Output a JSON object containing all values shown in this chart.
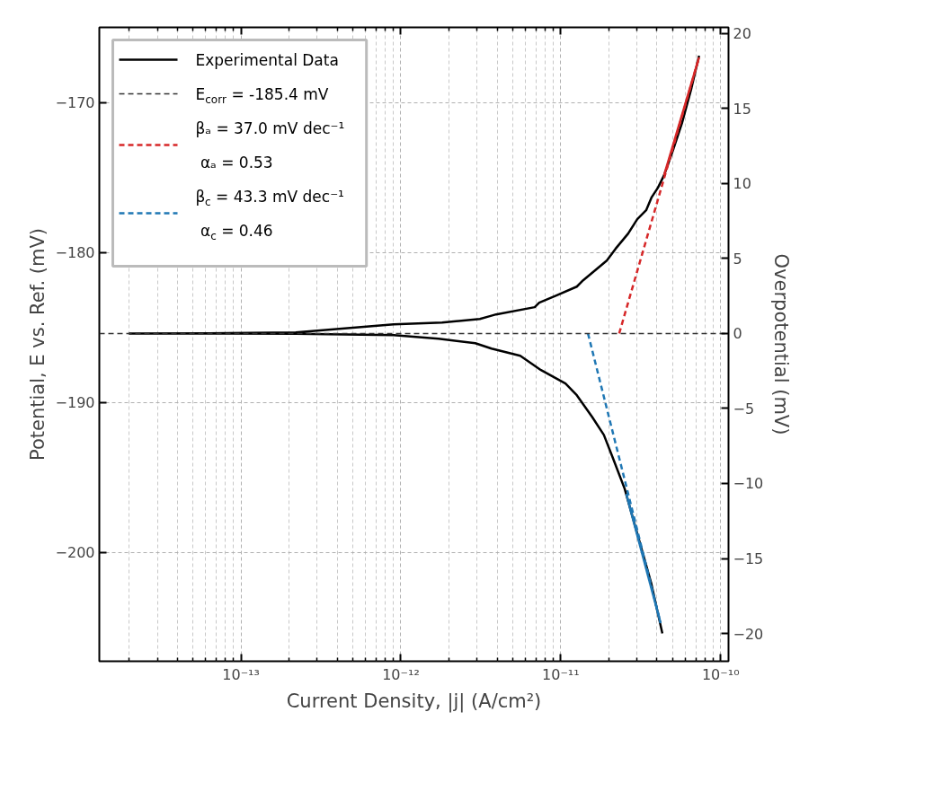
{
  "chart_data": {
    "type": "line",
    "xlabel": "Current Density, |j| (A/cm²)",
    "ylabel": "Potential, E vs. Ref. (mV)",
    "y2label": "Overpotential (mV)",
    "log": "x",
    "grid": true,
    "legend": "top left",
    "xlim": [
      1.3e-14,
      1.12e-10
    ],
    "xticks": [
      {
        "value": 1e-13,
        "label": "10⁻¹³"
      },
      {
        "value": 1e-12,
        "label": "10⁻¹²"
      },
      {
        "value": 1e-11,
        "label": "10⁻¹¹"
      },
      {
        "value": 1e-10,
        "label": "10⁻¹⁰"
      }
    ],
    "ylim": [
      -207.25,
      -165
    ],
    "yticks": [
      {
        "value": -200,
        "label": "−200"
      },
      {
        "value": -190,
        "label": "−190"
      },
      {
        "value": -180,
        "label": "−180"
      },
      {
        "value": -170,
        "label": "−170"
      }
    ],
    "y2lim": [
      -21.85,
      20.4
    ],
    "y2ticks": [
      {
        "value": -20,
        "label": "−20"
      },
      {
        "value": -15,
        "label": "−15"
      },
      {
        "value": -10,
        "label": "−10"
      },
      {
        "value": -5,
        "label": "−5"
      },
      0,
      5,
      10,
      15,
      20
    ],
    "ref_lines": [
      {
        "axis": "y",
        "value": -185.4,
        "label": "E$_{corr}$ = -185.4 mV",
        "color": "#333333",
        "line_style": "dashed"
      }
    ],
    "series": [
      {
        "name": "Experimental Data",
        "color": "#000000",
        "line_style": "solid",
        "x": [
          4.32e-11,
          3.69e-11,
          3.01e-11,
          2.51e-11,
          2.12e-11,
          1.86e-11,
          1.57e-11,
          1.26e-11,
          1.07e-11,
          7.52e-12,
          5.58e-12,
          3.69e-12,
          2.92e-12,
          1.72e-12,
          9.02e-13,
          2.2e-13,
          6.28e-14,
          2.01e-14,
          6.28e-14,
          2.2e-13,
          9.02e-13,
          1.81e-12,
          3.12e-12,
          3.6e-12,
          3.94e-12,
          6.87e-12,
          7.33e-12,
          9.38e-12,
          1.26e-11,
          1.38e-11,
          1.94e-11,
          2.2e-11,
          2.64e-11,
          3.01e-11,
          3.42e-11,
          3.69e-11,
          4.05e-11,
          4.43e-11,
          5.04e-11,
          5.73e-11,
          6.53e-11,
          7.33e-11
        ],
        "values": [
          -205.39,
          -202.1,
          -198.74,
          -195.75,
          -193.71,
          -192.16,
          -190.96,
          -189.52,
          -188.74,
          -187.84,
          -186.89,
          -186.41,
          -186.05,
          -185.75,
          -185.51,
          -185.42,
          -185.41,
          -185.4,
          -185.39,
          -185.33,
          -184.79,
          -184.67,
          -184.43,
          -184.25,
          -184.13,
          -183.65,
          -183.35,
          -182.87,
          -182.28,
          -181.86,
          -180.54,
          -179.76,
          -178.74,
          -177.78,
          -177.19,
          -176.35,
          -175.69,
          -174.85,
          -173.17,
          -171.38,
          -169.16,
          -166.89
        ]
      },
      {
        "name": "βₐ = 37.0 mV dec⁻¹\n αₐ = 0.53",
        "color": "#d62728",
        "line_style": "dashed",
        "x": [
          2.32e-11,
          7.33e-11
        ],
        "values": [
          -185.4,
          -167.0
        ]
      },
      {
        "color": "#d62728",
        "line_style": "solid",
        "x": [
          4.43e-11,
          7.33e-11
        ],
        "values": [
          -174.85,
          -167.0
        ]
      },
      {
        "name": "β$_{c}$ = 43.3 mV dec⁻¹\n α$_{c}$ = 0.46",
        "color": "#1f77b4",
        "line_style": "dashed",
        "x": [
          1.48e-11,
          4.21e-11
        ],
        "values": [
          -185.4,
          -204.7
        ]
      },
      {
        "color": "#1f77b4",
        "line_style": "solid",
        "x": [
          2.57e-11,
          4.21e-11
        ],
        "values": [
          -196.1,
          -204.7
        ]
      }
    ]
  }
}
